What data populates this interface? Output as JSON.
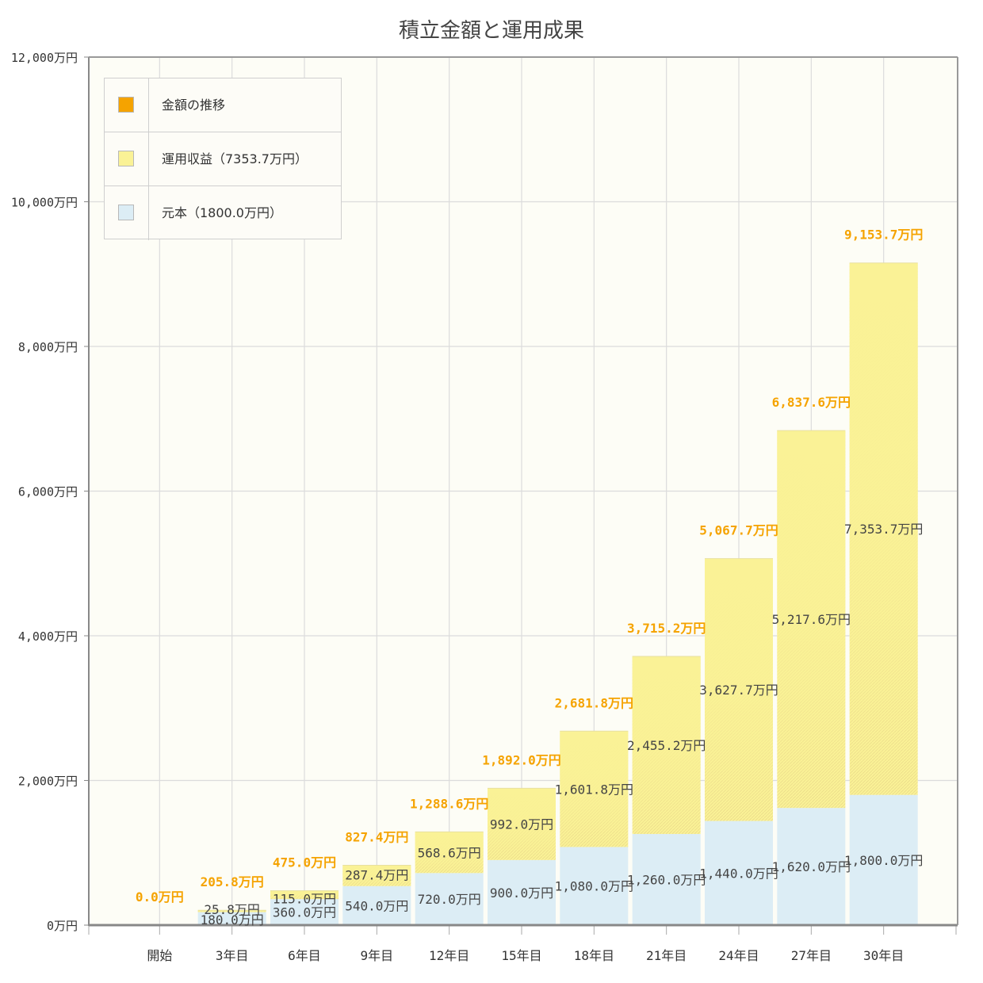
{
  "title": "積立金額と運用成果",
  "legend": {
    "items": [
      {
        "label": "金額の推移",
        "color": "#f5a300"
      },
      {
        "label": "運用収益（7353.7万円）",
        "color": "#faf296"
      },
      {
        "label": "元本（1800.0万円）",
        "color": "#dcedf5"
      }
    ]
  },
  "colors": {
    "principal": "#dcedf5",
    "returns": "#faf296",
    "total_label": "#f5a300",
    "segment_label": "#444444",
    "grid": "#dcdcdc",
    "plot_bg": "#fdfdf6"
  },
  "chart_data": {
    "type": "bar",
    "stacked": true,
    "title": "積立金額と運用成果",
    "categories": [
      "開始",
      "3年目",
      "6年目",
      "9年目",
      "12年目",
      "15年目",
      "18年目",
      "21年目",
      "24年目",
      "27年目",
      "30年目"
    ],
    "series": [
      {
        "name": "元本（1800.0万円）",
        "values": [
          0,
          180.0,
          360.0,
          540.0,
          720.0,
          900.0,
          1080.0,
          1260.0,
          1440.0,
          1620.0,
          1800.0
        ]
      },
      {
        "name": "運用収益（7353.7万円）",
        "values": [
          0,
          25.8,
          115.0,
          287.4,
          568.6,
          992.0,
          1601.8,
          2455.2,
          3627.7,
          5217.6,
          7353.7
        ]
      }
    ],
    "principal_labels": [
      "",
      "180.0万円",
      "360.0万円",
      "540.0万円",
      "720.0万円",
      "900.0万円",
      "1,080.0万円",
      "1,260.0万円",
      "1,440.0万円",
      "1,620.0万円",
      "1,800.0万円"
    ],
    "returns_labels": [
      "",
      "25.8万円",
      "115.0万円",
      "287.4万円",
      "568.6万円",
      "992.0万円",
      "1,601.8万円",
      "2,455.2万円",
      "3,627.7万円",
      "5,217.6万円",
      "7,353.7万円"
    ],
    "totals": [
      0.0,
      205.8,
      475.0,
      827.4,
      1288.6,
      1892.0,
      2681.8,
      3715.2,
      5067.7,
      6837.6,
      9153.7
    ],
    "total_labels": [
      "0.0万円",
      "205.8万円",
      "475.0万円",
      "827.4万円",
      "1,288.6万円",
      "1,892.0万円",
      "2,681.8万円",
      "3,715.2万円",
      "5,067.7万円",
      "6,837.6万円",
      "9,153.7万円"
    ],
    "ylim": [
      0,
      12000
    ],
    "yticks": [
      0,
      2000,
      4000,
      6000,
      8000,
      10000,
      12000
    ],
    "ytick_labels": [
      "0万円",
      "2,000万円",
      "4,000万円",
      "6,000万円",
      "8,000万円",
      "10,000万円",
      "12,000万円"
    ],
    "grid": true,
    "legend_position": "top-left"
  }
}
